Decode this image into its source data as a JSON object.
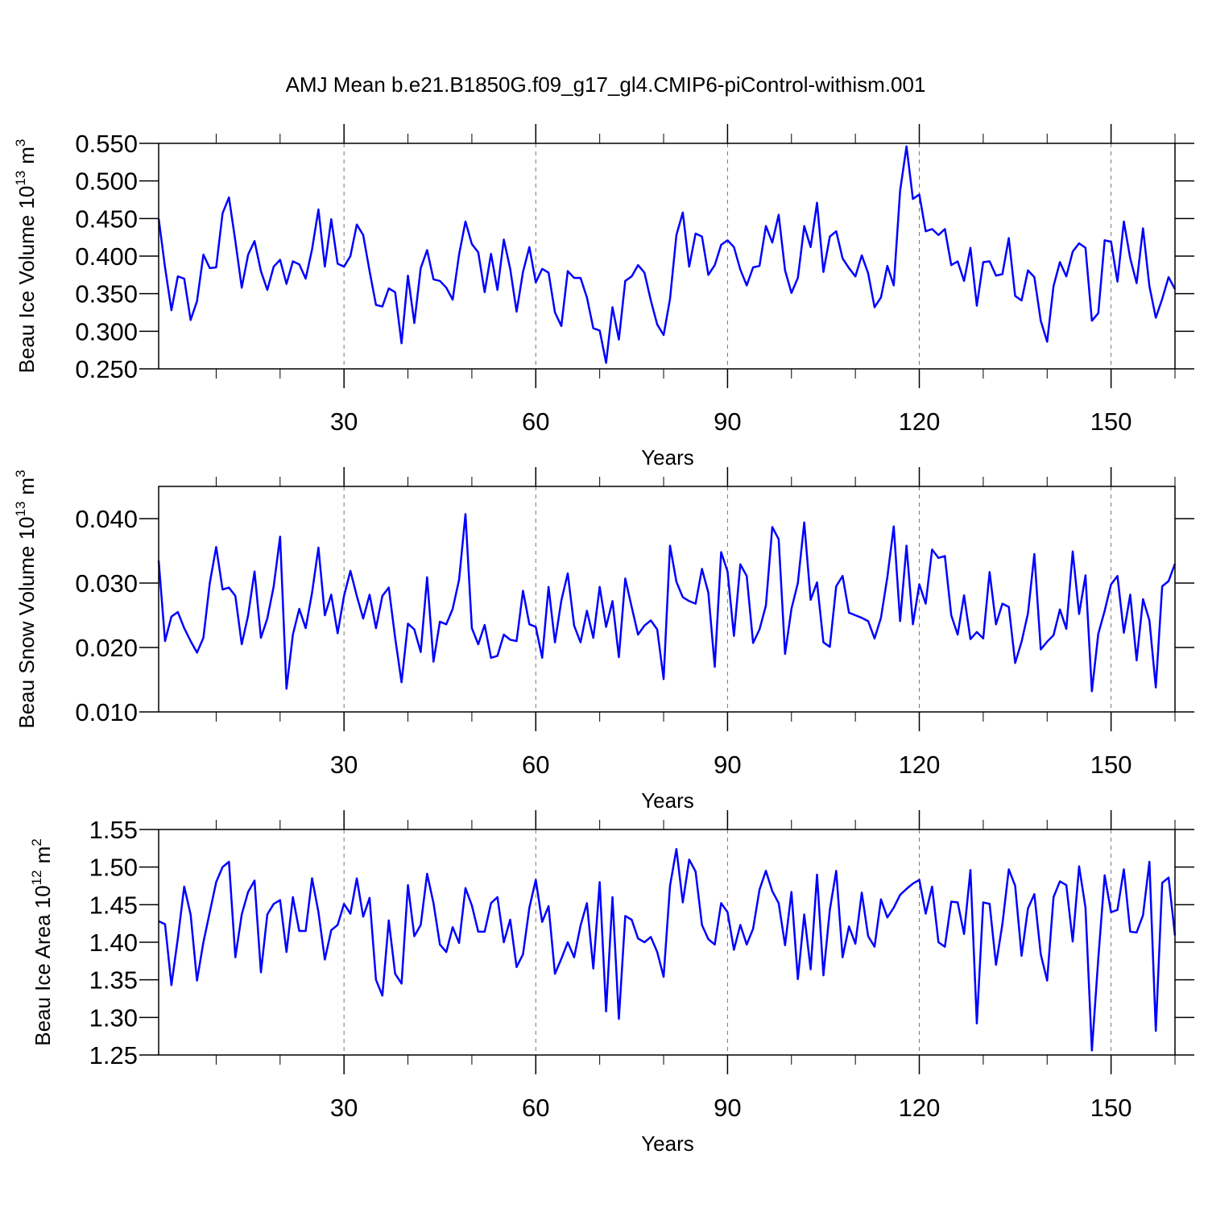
{
  "title": "AMJ Mean b.e21.B1850G.f09_g17_gl4.CMIP6-piControl-withism.001",
  "chart_data": [
    {
      "type": "line",
      "xlabel": "Years",
      "ylabel": {
        "text": "Beau Ice Volume 10",
        "exp": "13",
        "unit": "m",
        "unit_exp": "3"
      },
      "xlim": [
        1,
        160
      ],
      "xticks": [
        30,
        60,
        90,
        120,
        150
      ],
      "xminorticks": [
        10,
        20,
        40,
        50,
        70,
        80,
        100,
        110,
        130,
        140,
        160
      ],
      "grid": true,
      "ylim": [
        0.25,
        0.55
      ],
      "yticks": [
        {
          "value": 0.25,
          "label": "0.250"
        },
        {
          "value": 0.3,
          "label": "0.300"
        },
        {
          "value": 0.35,
          "label": "0.350"
        },
        {
          "value": 0.4,
          "label": "0.400"
        },
        {
          "value": 0.45,
          "label": "0.450"
        },
        {
          "value": 0.5,
          "label": "0.500"
        },
        {
          "value": 0.55,
          "label": "0.550"
        }
      ],
      "color": "#0000ff",
      "x": [
        1,
        2,
        3,
        4,
        5,
        6,
        7,
        8,
        9,
        10,
        11,
        12,
        13,
        14,
        15,
        16,
        17,
        18,
        19,
        20,
        21,
        22,
        23,
        24,
        25,
        26,
        27,
        28,
        29,
        30,
        31,
        32,
        33,
        34,
        35,
        36,
        37,
        38,
        39,
        40,
        41,
        42,
        43,
        44,
        45,
        46,
        47,
        48,
        49,
        50,
        51,
        52,
        53,
        54,
        55,
        56,
        57,
        58,
        59,
        60,
        61,
        62,
        63,
        64,
        65,
        66,
        67,
        68,
        69,
        70,
        71,
        72,
        73,
        74,
        75,
        76,
        77,
        78,
        79,
        80,
        81,
        82,
        83,
        84,
        85,
        86,
        87,
        88,
        89,
        90,
        91,
        92,
        93,
        94,
        95,
        96,
        97,
        98,
        99,
        100,
        101,
        102,
        103,
        104,
        105,
        106,
        107,
        108,
        109,
        110,
        111,
        112,
        113,
        114,
        115,
        116,
        117,
        118,
        119,
        120,
        121,
        122,
        123,
        124,
        125,
        126,
        127,
        128,
        129,
        130,
        131,
        132,
        133,
        134,
        135,
        136,
        137,
        138,
        139,
        140,
        141,
        142,
        143,
        144,
        145,
        146,
        147,
        148,
        149,
        150,
        151,
        152,
        153,
        154,
        155,
        156,
        157,
        158,
        159,
        160
      ],
      "values": [
        0.45,
        0.385,
        0.328,
        0.373,
        0.37,
        0.315,
        0.34,
        0.402,
        0.384,
        0.385,
        0.457,
        0.478,
        0.42,
        0.358,
        0.402,
        0.42,
        0.38,
        0.355,
        0.386,
        0.395,
        0.363,
        0.393,
        0.389,
        0.37,
        0.409,
        0.462,
        0.386,
        0.449,
        0.39,
        0.386,
        0.4,
        0.442,
        0.428,
        0.38,
        0.335,
        0.333,
        0.357,
        0.352,
        0.284,
        0.374,
        0.311,
        0.384,
        0.408,
        0.369,
        0.367,
        0.358,
        0.342,
        0.402,
        0.446,
        0.416,
        0.405,
        0.352,
        0.403,
        0.355,
        0.422,
        0.383,
        0.326,
        0.379,
        0.412,
        0.365,
        0.383,
        0.378,
        0.325,
        0.307,
        0.38,
        0.371,
        0.371,
        0.345,
        0.304,
        0.301,
        0.258,
        0.332,
        0.289,
        0.367,
        0.373,
        0.388,
        0.378,
        0.341,
        0.309,
        0.295,
        0.343,
        0.428,
        0.458,
        0.386,
        0.43,
        0.426,
        0.375,
        0.388,
        0.415,
        0.421,
        0.412,
        0.382,
        0.361,
        0.385,
        0.387,
        0.44,
        0.418,
        0.455,
        0.381,
        0.351,
        0.371,
        0.44,
        0.412,
        0.471,
        0.379,
        0.426,
        0.433,
        0.397,
        0.384,
        0.373,
        0.401,
        0.377,
        0.332,
        0.345,
        0.387,
        0.361,
        0.487,
        0.546,
        0.476,
        0.482,
        0.433,
        0.436,
        0.428,
        0.436,
        0.388,
        0.393,
        0.367,
        0.411,
        0.334,
        0.392,
        0.393,
        0.374,
        0.376,
        0.424,
        0.347,
        0.341,
        0.381,
        0.372,
        0.314,
        0.286,
        0.36,
        0.392,
        0.373,
        0.406,
        0.417,
        0.411,
        0.314,
        0.324,
        0.421,
        0.419,
        0.366,
        0.446,
        0.397,
        0.364,
        0.437,
        0.36,
        0.318,
        0.343,
        0.372,
        0.356
      ]
    },
    {
      "type": "line",
      "xlabel": "Years",
      "ylabel": {
        "text": "Beau Snow Volume 10",
        "exp": "13",
        "unit": "m",
        "unit_exp": "3"
      },
      "xlim": [
        1,
        160
      ],
      "xticks": [
        30,
        60,
        90,
        120,
        150
      ],
      "xminorticks": [
        10,
        20,
        40,
        50,
        70,
        80,
        100,
        110,
        130,
        140,
        160
      ],
      "grid": true,
      "ylim": [
        0.01,
        0.045
      ],
      "yticks": [
        {
          "value": 0.01,
          "label": "0.010"
        },
        {
          "value": 0.02,
          "label": "0.020"
        },
        {
          "value": 0.03,
          "label": "0.030"
        },
        {
          "value": 0.04,
          "label": "0.040"
        }
      ],
      "color": "#0000ff",
      "x": [
        1,
        2,
        3,
        4,
        5,
        6,
        7,
        8,
        9,
        10,
        11,
        12,
        13,
        14,
        15,
        16,
        17,
        18,
        19,
        20,
        21,
        22,
        23,
        24,
        25,
        26,
        27,
        28,
        29,
        30,
        31,
        32,
        33,
        34,
        35,
        36,
        37,
        38,
        39,
        40,
        41,
        42,
        43,
        44,
        45,
        46,
        47,
        48,
        49,
        50,
        51,
        52,
        53,
        54,
        55,
        56,
        57,
        58,
        59,
        60,
        61,
        62,
        63,
        64,
        65,
        66,
        67,
        68,
        69,
        70,
        71,
        72,
        73,
        74,
        75,
        76,
        77,
        78,
        79,
        80,
        81,
        82,
        83,
        84,
        85,
        86,
        87,
        88,
        89,
        90,
        91,
        92,
        93,
        94,
        95,
        96,
        97,
        98,
        99,
        100,
        101,
        102,
        103,
        104,
        105,
        106,
        107,
        108,
        109,
        110,
        111,
        112,
        113,
        114,
        115,
        116,
        117,
        118,
        119,
        120,
        121,
        122,
        123,
        124,
        125,
        126,
        127,
        128,
        129,
        130,
        131,
        132,
        133,
        134,
        135,
        136,
        137,
        138,
        139,
        140,
        141,
        142,
        143,
        144,
        145,
        146,
        147,
        148,
        149,
        150,
        151,
        152,
        153,
        154,
        155,
        156,
        157,
        158,
        159,
        160
      ],
      "values": [
        0.0335,
        0.021,
        0.0248,
        0.0255,
        0.023,
        0.021,
        0.0192,
        0.0215,
        0.03,
        0.0356,
        0.029,
        0.0293,
        0.028,
        0.0205,
        0.025,
        0.0318,
        0.0215,
        0.0245,
        0.0295,
        0.0372,
        0.0136,
        0.022,
        0.026,
        0.023,
        0.0285,
        0.0355,
        0.025,
        0.0282,
        0.0222,
        0.028,
        0.0319,
        0.028,
        0.0245,
        0.0282,
        0.023,
        0.028,
        0.0293,
        0.0215,
        0.0146,
        0.0237,
        0.0228,
        0.0193,
        0.0309,
        0.0178,
        0.024,
        0.0236,
        0.026,
        0.0305,
        0.0407,
        0.023,
        0.0205,
        0.0235,
        0.0184,
        0.0187,
        0.022,
        0.0212,
        0.021,
        0.0288,
        0.0236,
        0.0232,
        0.0184,
        0.0294,
        0.0208,
        0.0273,
        0.0315,
        0.0234,
        0.0208,
        0.0257,
        0.0215,
        0.0294,
        0.0232,
        0.0272,
        0.0185,
        0.0307,
        0.0263,
        0.022,
        0.0234,
        0.0242,
        0.0228,
        0.0151,
        0.0358,
        0.0302,
        0.0278,
        0.0272,
        0.0268,
        0.0322,
        0.0285,
        0.017,
        0.0348,
        0.0318,
        0.0218,
        0.0329,
        0.0311,
        0.0207,
        0.0228,
        0.0265,
        0.0387,
        0.0368,
        0.019,
        0.026,
        0.03,
        0.0394,
        0.0274,
        0.0301,
        0.0208,
        0.0201,
        0.0295,
        0.0311,
        0.0254,
        0.025,
        0.0246,
        0.0241,
        0.0214,
        0.0246,
        0.0309,
        0.0388,
        0.0241,
        0.0358,
        0.0236,
        0.0298,
        0.0268,
        0.0352,
        0.0339,
        0.0342,
        0.025,
        0.022,
        0.0281,
        0.0213,
        0.0224,
        0.0214,
        0.0317,
        0.0236,
        0.0268,
        0.0263,
        0.0176,
        0.0209,
        0.0253,
        0.0345,
        0.0197,
        0.0209,
        0.0219,
        0.0259,
        0.0229,
        0.0349,
        0.0252,
        0.0312,
        0.0132,
        0.0221,
        0.0257,
        0.0298,
        0.0311,
        0.0223,
        0.0282,
        0.018,
        0.0275,
        0.0242,
        0.0138,
        0.0295,
        0.0303,
        0.033
      ]
    },
    {
      "type": "line",
      "xlabel": "Years",
      "ylabel": {
        "text": "Beau Ice Area 10",
        "exp": "12",
        "unit": "m",
        "unit_exp": "2"
      },
      "xlim": [
        1,
        160
      ],
      "xticks": [
        30,
        60,
        90,
        120,
        150
      ],
      "xminorticks": [
        10,
        20,
        40,
        50,
        70,
        80,
        100,
        110,
        130,
        140,
        160
      ],
      "grid": true,
      "ylim": [
        1.25,
        1.55
      ],
      "yticks": [
        1.25,
        {
          "value": 1.3,
          "label": "1.30"
        },
        1.35,
        {
          "value": 1.4,
          "label": "1.40"
        },
        1.45,
        {
          "value": 1.5,
          "label": "1.50"
        },
        1.55
      ],
      "color": "#0000ff",
      "x": [
        1,
        2,
        3,
        4,
        5,
        6,
        7,
        8,
        9,
        10,
        11,
        12,
        13,
        14,
        15,
        16,
        17,
        18,
        19,
        20,
        21,
        22,
        23,
        24,
        25,
        26,
        27,
        28,
        29,
        30,
        31,
        32,
        33,
        34,
        35,
        36,
        37,
        38,
        39,
        40,
        41,
        42,
        43,
        44,
        45,
        46,
        47,
        48,
        49,
        50,
        51,
        52,
        53,
        54,
        55,
        56,
        57,
        58,
        59,
        60,
        61,
        62,
        63,
        64,
        65,
        66,
        67,
        68,
        69,
        70,
        71,
        72,
        73,
        74,
        75,
        76,
        77,
        78,
        79,
        80,
        81,
        82,
        83,
        84,
        85,
        86,
        87,
        88,
        89,
        90,
        91,
        92,
        93,
        94,
        95,
        96,
        97,
        98,
        99,
        100,
        101,
        102,
        103,
        104,
        105,
        106,
        107,
        108,
        109,
        110,
        111,
        112,
        113,
        114,
        115,
        116,
        117,
        118,
        119,
        120,
        121,
        122,
        123,
        124,
        125,
        126,
        127,
        128,
        129,
        130,
        131,
        132,
        133,
        134,
        135,
        136,
        137,
        138,
        139,
        140,
        141,
        142,
        143,
        144,
        145,
        146,
        147,
        148,
        149,
        150,
        151,
        152,
        153,
        154,
        155,
        156,
        157,
        158,
        159,
        160
      ],
      "values": [
        1.428,
        1.424,
        1.343,
        1.405,
        1.474,
        1.437,
        1.349,
        1.4,
        1.44,
        1.48,
        1.5,
        1.507,
        1.38,
        1.437,
        1.467,
        1.482,
        1.36,
        1.437,
        1.451,
        1.456,
        1.387,
        1.46,
        1.415,
        1.415,
        1.485,
        1.44,
        1.377,
        1.416,
        1.423,
        1.451,
        1.438,
        1.485,
        1.434,
        1.459,
        1.35,
        1.329,
        1.429,
        1.358,
        1.345,
        1.476,
        1.408,
        1.423,
        1.491,
        1.452,
        1.397,
        1.387,
        1.42,
        1.399,
        1.472,
        1.449,
        1.414,
        1.414,
        1.452,
        1.46,
        1.4,
        1.43,
        1.367,
        1.384,
        1.446,
        1.483,
        1.427,
        1.448,
        1.358,
        1.378,
        1.4,
        1.38,
        1.422,
        1.452,
        1.365,
        1.48,
        1.308,
        1.46,
        1.298,
        1.435,
        1.43,
        1.405,
        1.4,
        1.407,
        1.387,
        1.354,
        1.475,
        1.524,
        1.453,
        1.51,
        1.494,
        1.423,
        1.404,
        1.397,
        1.452,
        1.44,
        1.39,
        1.423,
        1.397,
        1.418,
        1.47,
        1.495,
        1.468,
        1.452,
        1.396,
        1.467,
        1.351,
        1.437,
        1.364,
        1.49,
        1.356,
        1.443,
        1.495,
        1.38,
        1.421,
        1.398,
        1.466,
        1.408,
        1.394,
        1.457,
        1.433,
        1.446,
        1.463,
        1.471,
        1.478,
        1.483,
        1.438,
        1.474,
        1.4,
        1.394,
        1.454,
        1.453,
        1.411,
        1.496,
        1.292,
        1.453,
        1.451,
        1.37,
        1.424,
        1.497,
        1.475,
        1.382,
        1.445,
        1.464,
        1.384,
        1.349,
        1.46,
        1.481,
        1.476,
        1.401,
        1.501,
        1.446,
        1.256,
        1.378,
        1.489,
        1.44,
        1.443,
        1.497,
        1.414,
        1.413,
        1.436,
        1.507,
        1.282,
        1.479,
        1.486,
        1.409
      ]
    }
  ]
}
